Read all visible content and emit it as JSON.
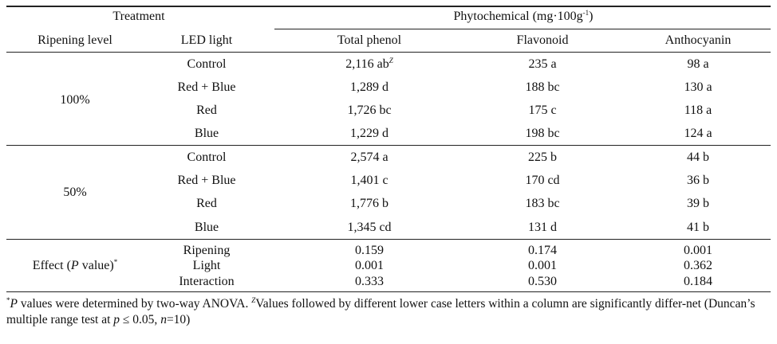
{
  "header": {
    "treatment": "Treatment",
    "phytochemical_prefix": "Phytochemical (mg·100g",
    "phytochemical_sup": "-1",
    "phytochemical_suffix": ")",
    "ripening_level": "Ripening level",
    "led_light": "LED light",
    "total_phenol": "Total phenol",
    "flavonoid": "Flavonoid",
    "anthocyanin": "Anthocyanin"
  },
  "groups": [
    {
      "ripening": "100%",
      "rows": [
        {
          "led": "Control",
          "phenol": "2,116 ab",
          "phenol_sup": "Z",
          "flavonoid": "235 a",
          "anthocyanin": "98 a"
        },
        {
          "led": "Red + Blue",
          "phenol": "1,289 d",
          "flavonoid": "188 bc",
          "anthocyanin": "130 a"
        },
        {
          "led": "Red",
          "phenol": "1,726 bc",
          "flavonoid": "175 c",
          "anthocyanin": "118 a"
        },
        {
          "led": "Blue",
          "phenol": "1,229 d",
          "flavonoid": "198 bc",
          "anthocyanin": "124 a"
        }
      ]
    },
    {
      "ripening": "50%",
      "rows": [
        {
          "led": "Control",
          "phenol": "2,574 a",
          "flavonoid": "225 b",
          "anthocyanin": "44 b"
        },
        {
          "led": "Red + Blue",
          "phenol": "1,401 c",
          "flavonoid": "170 cd",
          "anthocyanin": "36 b"
        },
        {
          "led": "Red",
          "phenol": "1,776 b",
          "flavonoid": "183 bc",
          "anthocyanin": "39 b"
        },
        {
          "led": "Blue",
          "phenol": "1,345 cd",
          "flavonoid": "131 d",
          "anthocyanin": "41 b"
        }
      ]
    }
  ],
  "effect": {
    "label_prefix": "Effect (",
    "label_italic": "P",
    "label_suffix": " value)",
    "label_sup": "*",
    "rows": [
      {
        "name": "Ripening",
        "phenol": "0.159",
        "flavonoid": "0.174",
        "anthocyanin": "0.001"
      },
      {
        "name": "Light",
        "phenol": "0.001",
        "flavonoid": "0.001",
        "anthocyanin": "0.362"
      },
      {
        "name": "Interaction",
        "phenol": "0.333",
        "flavonoid": "0.530",
        "anthocyanin": "0.184"
      }
    ]
  },
  "footnote": {
    "star": "*",
    "p_italic": "P",
    "text1": " values were determined by two-way ANOVA. ",
    "z": "Z",
    "text2": "Values followed by different lower case letters within a column are significantly differ-net (Duncan’s multiple range test at ",
    "p2": "p",
    "text3": " ≤ 0.05, ",
    "n": "n",
    "text4": "=10)"
  }
}
